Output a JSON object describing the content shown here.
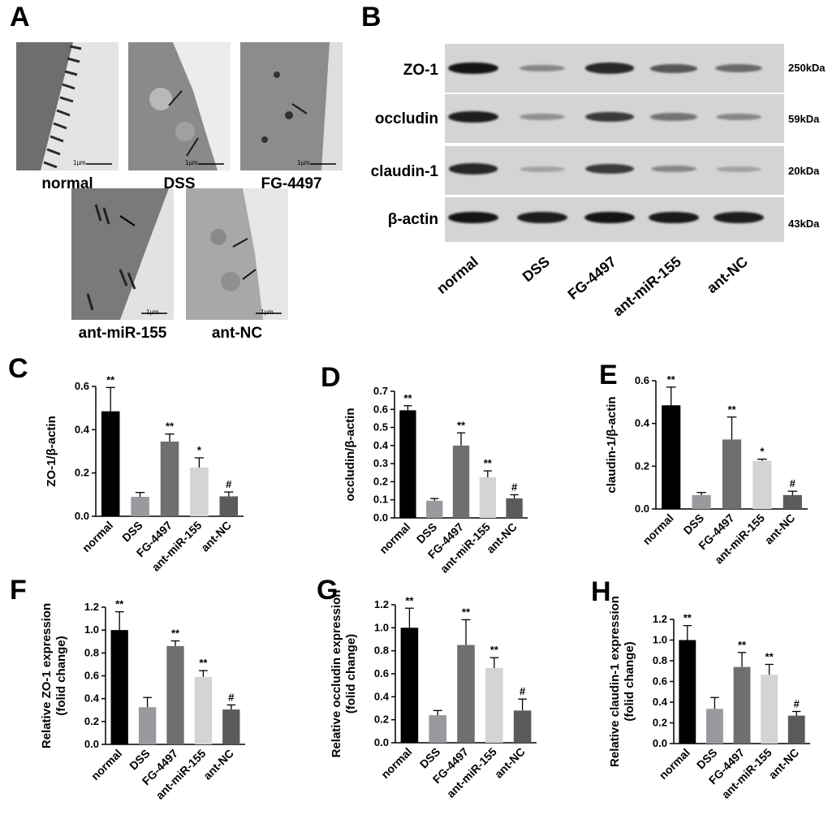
{
  "panel_letters": [
    "A",
    "B",
    "C",
    "D",
    "E",
    "F",
    "G",
    "H"
  ],
  "em_panels": [
    {
      "caption": "normal",
      "scale": "1µm"
    },
    {
      "caption": "DSS",
      "scale": "1µm"
    },
    {
      "caption": "FG-4497",
      "scale": "1µm"
    },
    {
      "caption": "ant-miR-155",
      "scale": "1µm"
    },
    {
      "caption": "ant-NC",
      "scale": "1µm"
    }
  ],
  "western_blot": {
    "rows": [
      {
        "name": "ZO-1",
        "size": "250kDa",
        "intensities": [
          0.95,
          0.35,
          0.85,
          0.6,
          0.5
        ]
      },
      {
        "name": "occludin",
        "size": "59kDa",
        "intensities": [
          0.9,
          0.3,
          0.75,
          0.45,
          0.35
        ]
      },
      {
        "name": "claudin-1",
        "size": "20kDa",
        "intensities": [
          0.85,
          0.2,
          0.75,
          0.35,
          0.2
        ]
      },
      {
        "name": "β-actin",
        "size": "43kDa",
        "intensities": [
          0.95,
          0.9,
          0.95,
          0.92,
          0.9
        ]
      }
    ],
    "lanes": [
      "normal",
      "DSS",
      "FG-4497",
      "ant-miR-155",
      "ant-NC"
    ]
  },
  "colors": {
    "normal": "#000000",
    "DSS": "#9a9a9e",
    "FG-4497": "#6f6f6f",
    "ant-miR-155": "#d4d4d4",
    "ant-NC": "#5b5b5b"
  },
  "chart_data": [
    {
      "panel": "C",
      "type": "bar",
      "categories": [
        "normal",
        "DSS",
        "FG-4497",
        "ant-miR-155",
        "ant-NC"
      ],
      "values": [
        0.485,
        0.09,
        0.345,
        0.225,
        0.092
      ],
      "errors": [
        0.11,
        0.02,
        0.035,
        0.045,
        0.02
      ],
      "annotations": [
        "**",
        "",
        "**",
        "*",
        "#"
      ],
      "ylabel": "ZO-1/β-actin",
      "ylim": [
        0,
        0.6
      ],
      "yticks": [
        0.0,
        0.2,
        0.4,
        0.6
      ]
    },
    {
      "panel": "D",
      "type": "bar",
      "categories": [
        "normal",
        "DSS",
        "FG-4497",
        "ant-miR-155",
        "ant-NC"
      ],
      "values": [
        0.595,
        0.095,
        0.4,
        0.225,
        0.108
      ],
      "errors": [
        0.025,
        0.012,
        0.07,
        0.035,
        0.02
      ],
      "annotations": [
        "**",
        "",
        "**",
        "**",
        "#"
      ],
      "ylabel": "occludin/β-actin",
      "ylim": [
        0,
        0.7
      ],
      "yticks": [
        0.0,
        0.1,
        0.2,
        0.3,
        0.4,
        0.5,
        0.6,
        0.7
      ]
    },
    {
      "panel": "E",
      "type": "bar",
      "categories": [
        "normal",
        "DSS",
        "FG-4497",
        "ant-miR-155",
        "ant-NC"
      ],
      "values": [
        0.485,
        0.065,
        0.325,
        0.225,
        0.065
      ],
      "errors": [
        0.085,
        0.012,
        0.105,
        0.008,
        0.018
      ],
      "annotations": [
        "**",
        "",
        "**",
        "*",
        "#"
      ],
      "ylabel": "claudin-1/β-actin",
      "ylim": [
        0,
        0.6
      ],
      "yticks": [
        0.0,
        0.2,
        0.4,
        0.6
      ]
    },
    {
      "panel": "F",
      "type": "bar",
      "categories": [
        "normal",
        "DSS",
        "FG-4497",
        "ant-miR-155",
        "ant-NC"
      ],
      "values": [
        1.0,
        0.325,
        0.86,
        0.59,
        0.305
      ],
      "errors": [
        0.16,
        0.085,
        0.045,
        0.055,
        0.04
      ],
      "annotations": [
        "**",
        "",
        "**",
        "**",
        "#"
      ],
      "ylabel": "Relative ZO-1 expression\n(folid change)",
      "ylim": [
        0,
        1.2
      ],
      "yticks": [
        0.0,
        0.2,
        0.4,
        0.6,
        0.8,
        1.0,
        1.2
      ]
    },
    {
      "panel": "G",
      "type": "bar",
      "categories": [
        "normal",
        "DSS",
        "FG-4497",
        "ant-miR-155",
        "ant-NC"
      ],
      "values": [
        1.0,
        0.24,
        0.85,
        0.65,
        0.28
      ],
      "errors": [
        0.17,
        0.04,
        0.22,
        0.09,
        0.1
      ],
      "annotations": [
        "**",
        "",
        "**",
        "**",
        "#"
      ],
      "ylabel": "Relative occludin expression\n(folid change)",
      "ylim": [
        0,
        1.2
      ],
      "yticks": [
        0.0,
        0.2,
        0.4,
        0.6,
        0.8,
        1.0,
        1.2
      ]
    },
    {
      "panel": "H",
      "type": "bar",
      "categories": [
        "normal",
        "DSS",
        "FG-4497",
        "ant-miR-155",
        "ant-NC"
      ],
      "values": [
        1.0,
        0.335,
        0.74,
        0.665,
        0.27
      ],
      "errors": [
        0.14,
        0.11,
        0.14,
        0.1,
        0.04
      ],
      "annotations": [
        "**",
        "",
        "**",
        "**",
        "#"
      ],
      "ylabel": "Relative claudin-1 expression\n(folid change)",
      "ylim": [
        0,
        1.2
      ],
      "yticks": [
        0.0,
        0.2,
        0.4,
        0.6,
        0.8,
        1.0,
        1.2
      ]
    }
  ]
}
